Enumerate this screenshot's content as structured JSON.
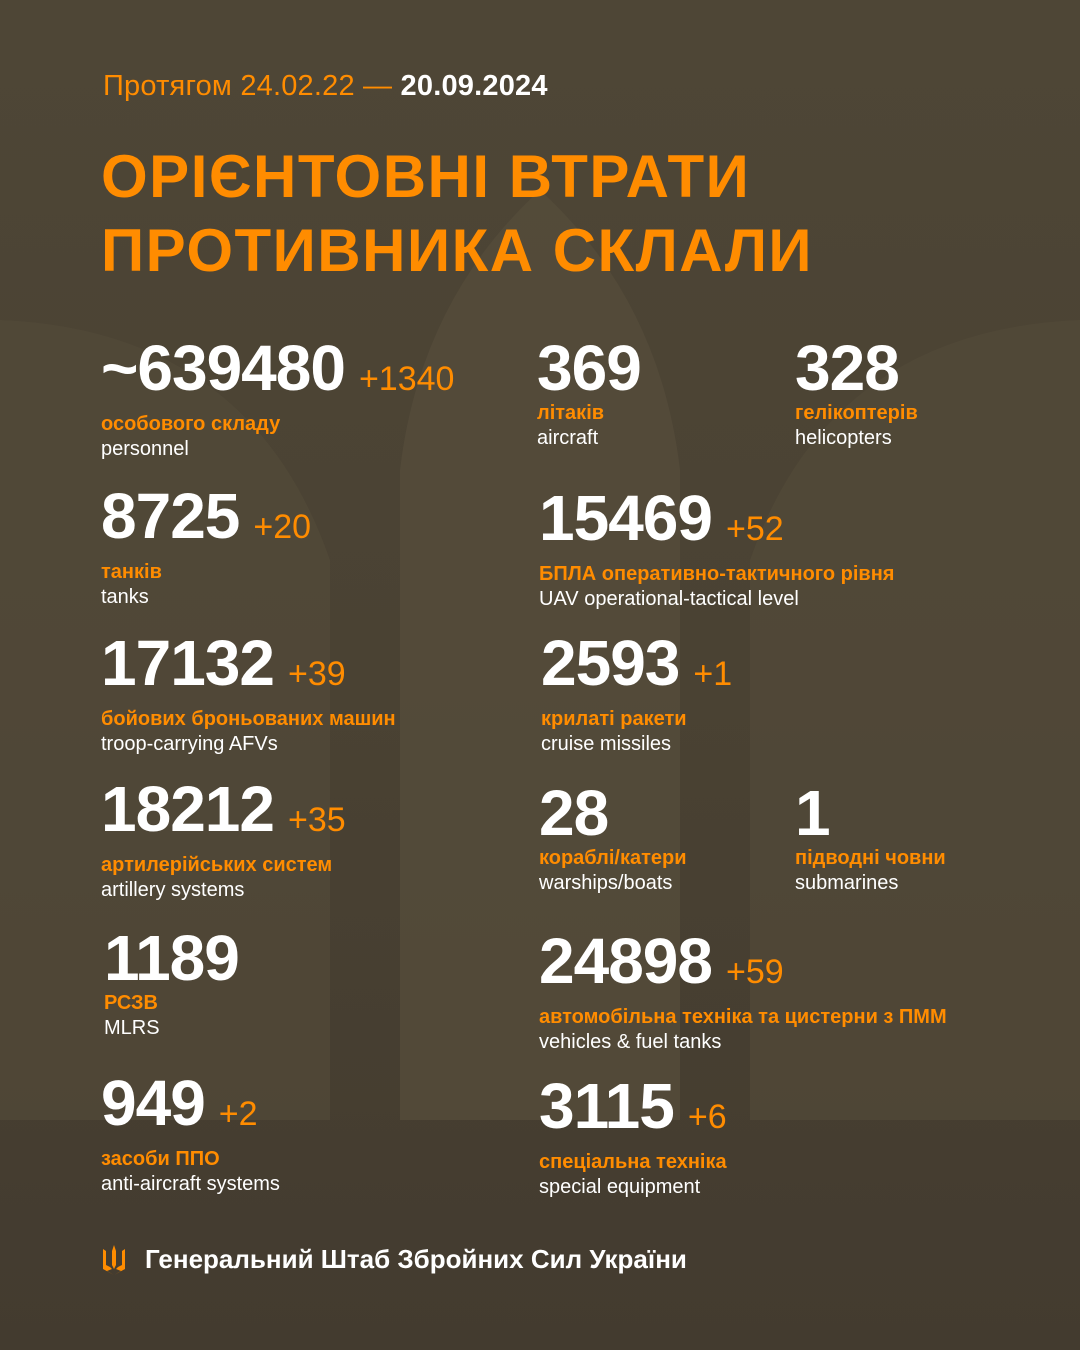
{
  "colors": {
    "accent": "#ff8c00",
    "background": "#4b4334",
    "text": "#ffffff"
  },
  "header": {
    "period_prefix": "Протягом 24.02.22 —",
    "period_end": "20.09.2024",
    "title_line1": "ОРІЄНТОВНІ ВТРАТИ",
    "title_line2": "ПРОТИВНИКА СКЛАЛИ"
  },
  "items": [
    {
      "value": "~639480",
      "delta": "+1340",
      "ua": "особового складу",
      "en": "personnel"
    },
    {
      "value": "369",
      "delta": "",
      "ua": "літаків",
      "en": "aircraft"
    },
    {
      "value": "328",
      "delta": "",
      "ua": "гелікоптерів",
      "en": "helicopters"
    },
    {
      "value": "8725",
      "delta": "+20",
      "ua": "танків",
      "en": "tanks"
    },
    {
      "value": "15469",
      "delta": "+52",
      "ua": "БПЛА оперативно-тактичного рівня",
      "en": "UAV operational-tactical level"
    },
    {
      "value": "17132",
      "delta": "+39",
      "ua": "бойових броньованих машин",
      "en": "troop-carrying AFVs"
    },
    {
      "value": "2593",
      "delta": "+1",
      "ua": "крилаті ракети",
      "en": "cruise missiles"
    },
    {
      "value": "18212",
      "delta": "+35",
      "ua": "артилерійських систем",
      "en": "artillery systems"
    },
    {
      "value": "28",
      "delta": "",
      "ua": "кораблі/катери",
      "en": "warships/boats"
    },
    {
      "value": "1",
      "delta": "",
      "ua": "підводні човни",
      "en": "submarines"
    },
    {
      "value": "1189",
      "delta": "",
      "ua": "РСЗВ",
      "en": "MLRS"
    },
    {
      "value": "24898",
      "delta": "+59",
      "ua": "автомобільна техніка та цистерни з ПММ",
      "en": "vehicles & fuel tanks"
    },
    {
      "value": "949",
      "delta": "+2",
      "ua": "засоби ППО",
      "en": "anti-aircraft systems"
    },
    {
      "value": "3115",
      "delta": "+6",
      "ua": "спеціальна техніка",
      "en": "special equipment"
    }
  ],
  "footer": {
    "icon": "trident-icon",
    "text": "Генеральний Штаб Збройних Сил України"
  }
}
